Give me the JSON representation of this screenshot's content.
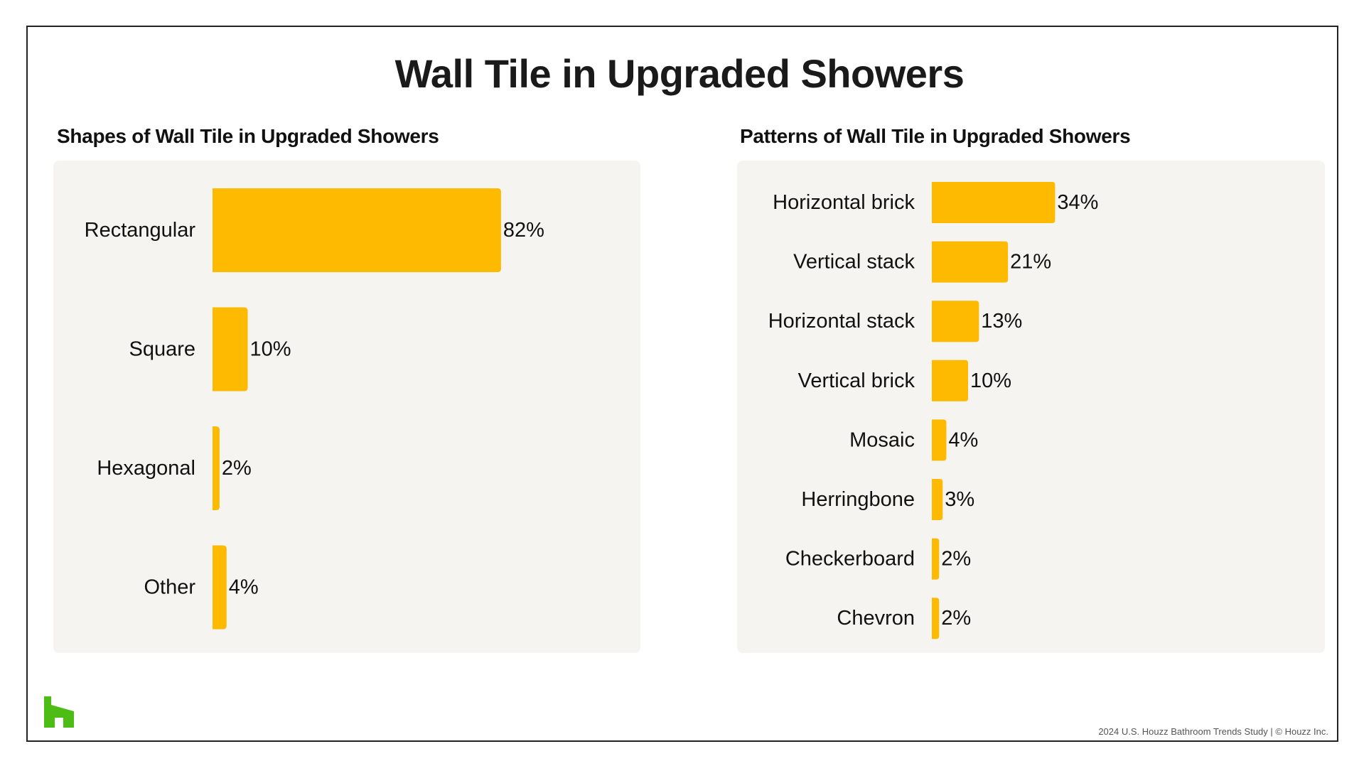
{
  "title": "Wall Tile in Upgraded Showers",
  "footer": "2024 U.S. Houzz Bathroom Trends Study  |  © Houzz Inc.",
  "logo_icon": "houzz-logo-icon",
  "colors": {
    "bar": "#FDBA00",
    "panel": "#F5F4F1",
    "logo": "#4DBC15"
  },
  "chart_data": [
    {
      "type": "bar",
      "orientation": "horizontal",
      "title": "Shapes of Wall Tile in Upgraded Showers",
      "categories": [
        "Rectangular",
        "Square",
        "Hexagonal",
        "Other"
      ],
      "values": [
        82,
        10,
        2,
        4
      ],
      "value_labels": [
        "82%",
        "10%",
        "2%",
        "4%"
      ],
      "xlim": [
        0,
        100
      ],
      "grid": false
    },
    {
      "type": "bar",
      "orientation": "horizontal",
      "title": "Patterns of Wall Tile in Upgraded Showers",
      "categories": [
        "Horizontal brick",
        "Vertical stack",
        "Horizontal stack",
        "Vertical brick",
        "Mosaic",
        "Herringbone",
        "Checkerboard",
        "Chevron"
      ],
      "values": [
        34,
        21,
        13,
        10,
        4,
        3,
        2,
        2
      ],
      "value_labels": [
        "34%",
        "21%",
        "13%",
        "10%",
        "4%",
        "3%",
        "2%",
        "2%"
      ],
      "xlim": [
        0,
        100
      ],
      "grid": false
    }
  ]
}
